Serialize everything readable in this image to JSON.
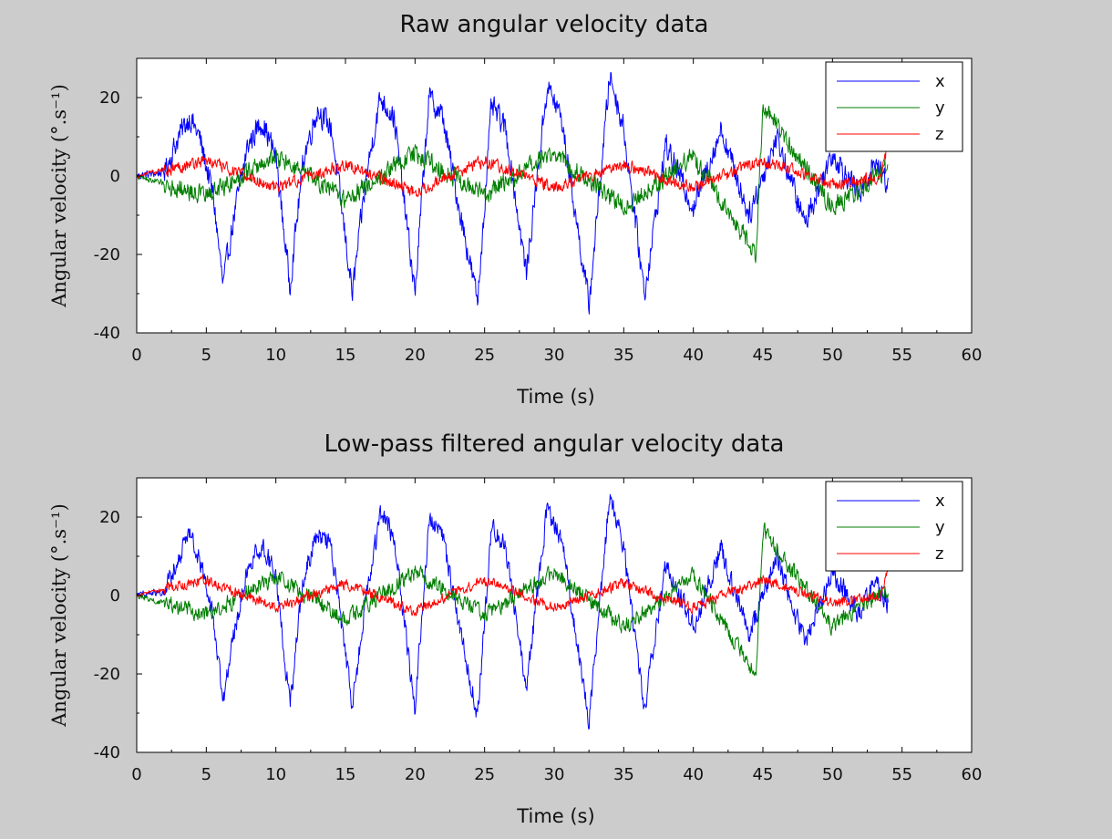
{
  "chart_data": [
    {
      "type": "line",
      "title": "Raw angular velocity data",
      "xlabel": "Time (s)",
      "ylabel": "Angular velocity (°.s⁻¹)",
      "xlim": [
        0,
        60
      ],
      "ylim": [
        -40,
        30
      ],
      "xticks": [
        0,
        5,
        10,
        15,
        20,
        25,
        30,
        35,
        40,
        45,
        50,
        55,
        60
      ],
      "yticks": [
        20,
        0,
        -20,
        -40
      ],
      "grid": false,
      "legend_position": "top-right",
      "series": [
        {
          "name": "x",
          "color": "#0000ff",
          "x": [
            0,
            2,
            3,
            3.8,
            4.5,
            5.5,
            6.2,
            7,
            8,
            9,
            10,
            11,
            12,
            13,
            14,
            15.5,
            16.5,
            17.5,
            18.5,
            20,
            21,
            22,
            23,
            24.5,
            25.5,
            26.5,
            28,
            29.5,
            30.5,
            32.5,
            34,
            35,
            36.5,
            38,
            40,
            42,
            44,
            46,
            48,
            50,
            52,
            53,
            54
          ],
          "y": [
            0,
            1,
            10,
            15,
            10,
            -5,
            -28,
            -10,
            8,
            14,
            5,
            -28,
            5,
            17,
            12,
            -30,
            0,
            20,
            15,
            -30,
            20,
            15,
            -5,
            -32,
            18,
            12,
            -25,
            23,
            15,
            -33,
            26,
            12,
            -30,
            8,
            -8,
            12,
            -10,
            10,
            -12,
            6,
            -5,
            4,
            -2
          ]
        },
        {
          "name": "y",
          "color": "#007f00",
          "x": [
            0,
            5,
            10,
            15,
            20,
            25,
            30,
            35,
            40,
            44.5,
            45,
            50,
            54
          ],
          "y": [
            0,
            -5,
            5,
            -6,
            6,
            -5,
            6,
            -8,
            5,
            -20,
            18,
            -8,
            2
          ]
        },
        {
          "name": "z",
          "color": "#ff0000",
          "x": [
            0,
            5,
            10,
            15,
            20,
            25,
            30,
            35,
            40,
            45,
            50,
            53.5,
            54
          ],
          "y": [
            0,
            4,
            -3,
            3,
            -4,
            4,
            -3,
            3,
            -3,
            4,
            -2,
            0,
            8
          ]
        }
      ]
    },
    {
      "type": "line",
      "title": "Low-pass filtered angular velocity data",
      "xlabel": "Time (s)",
      "ylabel": "Angular velocity (°.s⁻¹)",
      "xlim": [
        0,
        60
      ],
      "ylim": [
        -40,
        30
      ],
      "xticks": [
        0,
        5,
        10,
        15,
        20,
        25,
        30,
        35,
        40,
        45,
        50,
        55,
        60
      ],
      "yticks": [
        20,
        0,
        -20,
        -40
      ],
      "grid": false,
      "legend_position": "top-right",
      "series": [
        {
          "name": "x",
          "color": "#0000ff",
          "x": [
            0,
            2,
            3,
            3.8,
            4.5,
            5.5,
            6.2,
            7,
            8,
            9,
            10,
            11,
            12,
            13,
            14,
            15.5,
            16.5,
            17.5,
            18.5,
            20,
            21,
            22,
            23,
            24.5,
            25.5,
            26.5,
            28,
            29.5,
            30.5,
            32.5,
            34,
            35,
            36.5,
            38,
            40,
            42,
            44,
            46,
            48,
            50,
            52,
            53,
            54
          ],
          "y": [
            0,
            1,
            10,
            15,
            10,
            -5,
            -27,
            -10,
            8,
            13,
            5,
            -28,
            5,
            16,
            12,
            -28,
            0,
            20,
            15,
            -29,
            19,
            15,
            -5,
            -31,
            18,
            12,
            -24,
            22,
            15,
            -32,
            26,
            12,
            -29,
            8,
            -8,
            12,
            -10,
            10,
            -12,
            6,
            -5,
            4,
            -2
          ]
        },
        {
          "name": "y",
          "color": "#007f00",
          "x": [
            0,
            5,
            10,
            15,
            20,
            25,
            30,
            35,
            40,
            44.5,
            45,
            50,
            54
          ],
          "y": [
            0,
            -5,
            5,
            -6,
            6,
            -5,
            6,
            -8,
            5,
            -20,
            17,
            -8,
            2
          ]
        },
        {
          "name": "z",
          "color": "#ff0000",
          "x": [
            0,
            5,
            10,
            15,
            20,
            25,
            30,
            35,
            40,
            45,
            50,
            53.5,
            54
          ],
          "y": [
            0,
            4,
            -3,
            3,
            -4,
            4,
            -3,
            3,
            -3,
            4,
            -2,
            0,
            8
          ]
        }
      ]
    }
  ]
}
